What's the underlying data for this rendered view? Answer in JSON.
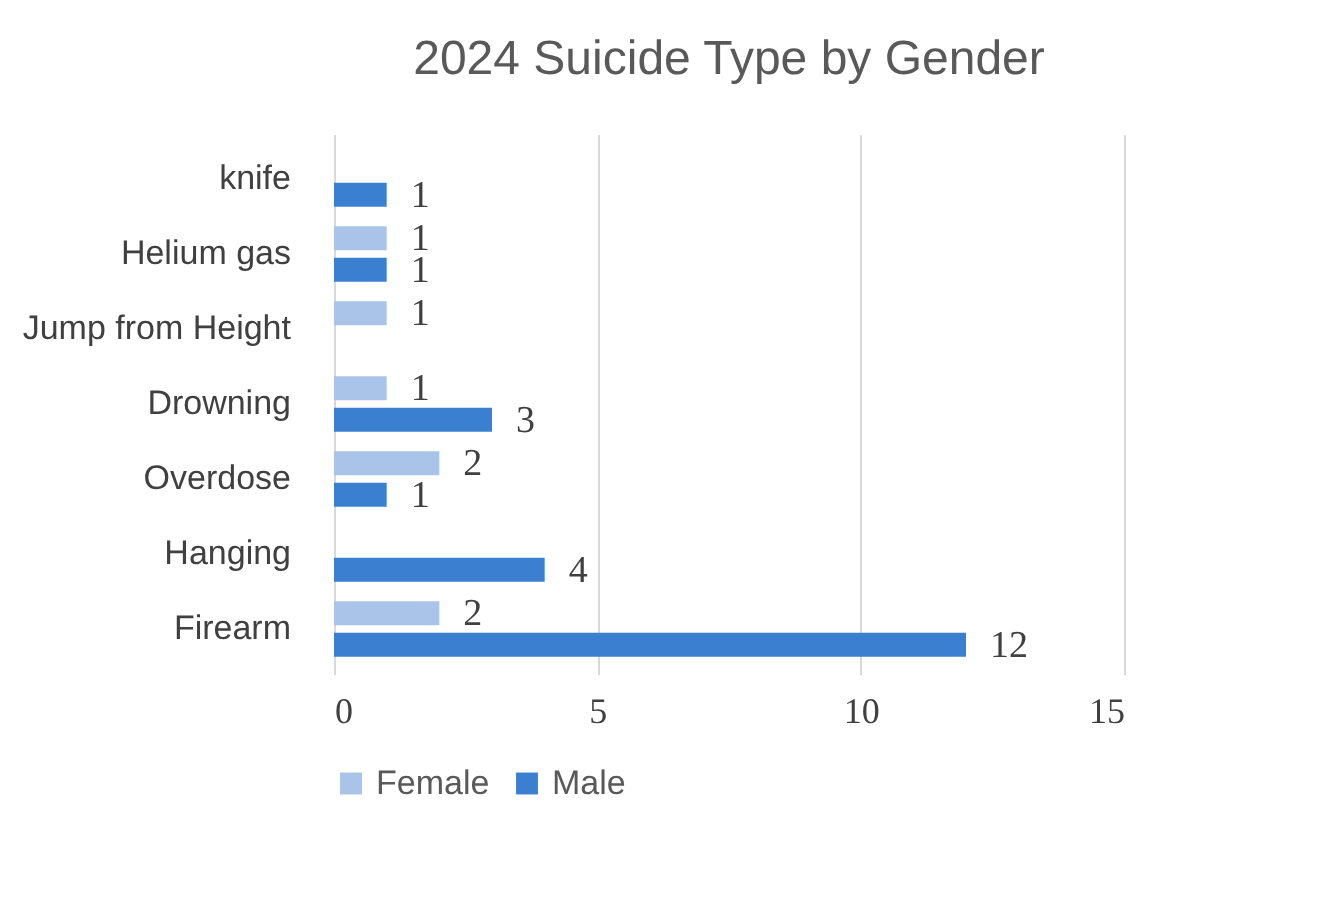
{
  "chart_data": {
    "type": "bar",
    "orientation": "horizontal",
    "title": "2024 Suicide Type by Gender",
    "categories": [
      "knife",
      "Helium gas",
      "Jump from Height",
      "Drowning",
      "Overdose",
      "Hanging",
      "Firearm"
    ],
    "series": [
      {
        "name": "Female",
        "color": "#a9c4e8",
        "values": [
          null,
          1,
          1,
          1,
          2,
          null,
          2
        ]
      },
      {
        "name": "Male",
        "color": "#3b7fd0",
        "values": [
          1,
          1,
          null,
          3,
          1,
          4,
          12
        ]
      }
    ],
    "xlim": [
      0,
      15
    ],
    "xticks": [
      0,
      5,
      10,
      15
    ],
    "grid": "x",
    "legend": "bottom",
    "data_labels": true
  }
}
